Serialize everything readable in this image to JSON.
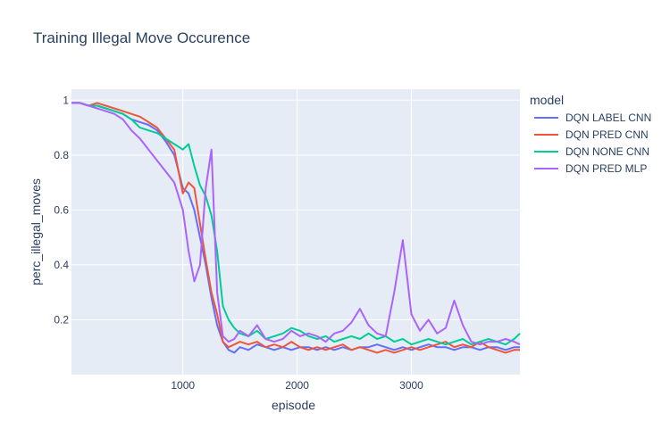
{
  "title": "Training Illegal Move Occurence",
  "legend": {
    "title": "model"
  },
  "colors": {
    "plot_bg": "#e5ecf6",
    "grid": "#ffffff",
    "text": "#2a3f5f"
  },
  "chart_data": {
    "type": "line",
    "title": "Training Illegal Move Occurence",
    "xlabel": "episode",
    "ylabel": "perc_illegal_moves",
    "xlim": [
      25,
      3950
    ],
    "ylim": [
      0,
      1.04
    ],
    "xticks": [
      1000,
      2000,
      3000
    ],
    "yticks": [
      0.2,
      0.4,
      0.6,
      0.8,
      1
    ],
    "ytick_labels": [
      "0.2",
      "0.4",
      "0.6",
      "0.8",
      "1"
    ],
    "grid": true,
    "legend_position": "right",
    "x": [
      25,
      100,
      175,
      250,
      325,
      400,
      475,
      550,
      625,
      700,
      775,
      850,
      925,
      1000,
      1050,
      1100,
      1150,
      1200,
      1250,
      1300,
      1350,
      1400,
      1450,
      1500,
      1575,
      1650,
      1725,
      1800,
      1875,
      1950,
      2025,
      2100,
      2175,
      2250,
      2325,
      2400,
      2475,
      2550,
      2625,
      2700,
      2775,
      2850,
      2925,
      3000,
      3075,
      3150,
      3225,
      3300,
      3375,
      3450,
      3525,
      3600,
      3675,
      3750,
      3825,
      3900,
      3950
    ],
    "series": [
      {
        "name": "DQN LABEL CNN",
        "color": "#636efa",
        "values": [
          0.99,
          0.99,
          0.98,
          0.98,
          0.97,
          0.96,
          0.95,
          0.93,
          0.92,
          0.91,
          0.89,
          0.85,
          0.8,
          0.68,
          0.66,
          0.6,
          0.5,
          0.4,
          0.28,
          0.18,
          0.12,
          0.09,
          0.08,
          0.1,
          0.09,
          0.11,
          0.1,
          0.09,
          0.1,
          0.09,
          0.1,
          0.1,
          0.09,
          0.1,
          0.09,
          0.1,
          0.09,
          0.1,
          0.1,
          0.11,
          0.1,
          0.09,
          0.1,
          0.09,
          0.1,
          0.11,
          0.1,
          0.1,
          0.09,
          0.1,
          0.1,
          0.09,
          0.1,
          0.1,
          0.09,
          0.1,
          0.1
        ]
      },
      {
        "name": "DQN PRED CNN",
        "color": "#ef553b",
        "values": [
          0.99,
          0.99,
          0.98,
          0.99,
          0.98,
          0.97,
          0.96,
          0.95,
          0.94,
          0.92,
          0.9,
          0.86,
          0.82,
          0.66,
          0.7,
          0.68,
          0.55,
          0.42,
          0.3,
          0.22,
          0.12,
          0.1,
          0.11,
          0.12,
          0.11,
          0.12,
          0.1,
          0.11,
          0.1,
          0.12,
          0.1,
          0.09,
          0.1,
          0.09,
          0.1,
          0.11,
          0.09,
          0.1,
          0.09,
          0.08,
          0.09,
          0.08,
          0.09,
          0.1,
          0.09,
          0.1,
          0.11,
          0.12,
          0.1,
          0.11,
          0.1,
          0.12,
          0.1,
          0.09,
          0.08,
          0.09,
          0.09
        ]
      },
      {
        "name": "DQN NONE CNN",
        "color": "#00cc96",
        "values": [
          0.99,
          0.99,
          0.98,
          0.98,
          0.97,
          0.96,
          0.95,
          0.93,
          0.9,
          0.89,
          0.88,
          0.86,
          0.84,
          0.82,
          0.84,
          0.76,
          0.69,
          0.65,
          0.58,
          0.45,
          0.25,
          0.2,
          0.17,
          0.15,
          0.14,
          0.16,
          0.13,
          0.14,
          0.15,
          0.17,
          0.16,
          0.14,
          0.13,
          0.14,
          0.12,
          0.13,
          0.14,
          0.13,
          0.15,
          0.13,
          0.14,
          0.12,
          0.13,
          0.11,
          0.12,
          0.13,
          0.12,
          0.11,
          0.12,
          0.13,
          0.11,
          0.12,
          0.13,
          0.12,
          0.11,
          0.13,
          0.15
        ]
      },
      {
        "name": "DQN PRED MLP",
        "color": "#ab63fa",
        "values": [
          0.99,
          0.99,
          0.98,
          0.97,
          0.96,
          0.95,
          0.93,
          0.89,
          0.86,
          0.82,
          0.78,
          0.74,
          0.7,
          0.6,
          0.45,
          0.34,
          0.4,
          0.68,
          0.82,
          0.3,
          0.14,
          0.12,
          0.13,
          0.16,
          0.14,
          0.18,
          0.13,
          0.12,
          0.13,
          0.16,
          0.14,
          0.15,
          0.14,
          0.12,
          0.15,
          0.16,
          0.19,
          0.24,
          0.18,
          0.15,
          0.14,
          0.3,
          0.49,
          0.22,
          0.16,
          0.2,
          0.15,
          0.17,
          0.27,
          0.18,
          0.12,
          0.11,
          0.12,
          0.12,
          0.13,
          0.12,
          0.11
        ]
      }
    ]
  }
}
